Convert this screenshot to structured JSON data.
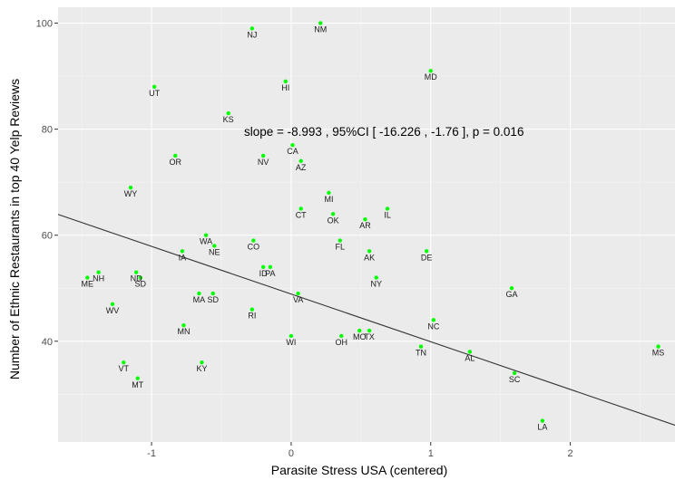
{
  "chart_data": {
    "type": "scatter",
    "xlabel": "Parasite Stress USA (centered)",
    "ylabel": "Number of Ethnic Restaurants in top 40 Yelp Reviews",
    "xlim": [
      -1.67,
      2.75
    ],
    "ylim": [
      21,
      103
    ],
    "x_ticks": [
      -1,
      0,
      1,
      2
    ],
    "y_ticks": [
      40,
      60,
      80,
      100
    ],
    "x_tick_labels": [
      "-1",
      "0",
      "1",
      "2"
    ],
    "y_tick_labels": [
      "40",
      "60",
      "80",
      "100"
    ],
    "grid": true,
    "background": "#ebebeb",
    "point_color": "#00ff00",
    "fit_line": {
      "intercept": 48.9,
      "slope": -8.993
    },
    "annotation": "slope =  -8.993 , 95%CI [ -16.226 , -1.76 ], p =  0.016",
    "points": [
      {
        "label": "NM",
        "x": 0.21,
        "y": 100
      },
      {
        "label": "NJ",
        "x": -0.28,
        "y": 99
      },
      {
        "label": "MD",
        "x": 1.0,
        "y": 91
      },
      {
        "label": "HI",
        "x": -0.04,
        "y": 89
      },
      {
        "label": "UT",
        "x": -0.98,
        "y": 88
      },
      {
        "label": "KS",
        "x": -0.45,
        "y": 83
      },
      {
        "label": "CA",
        "x": 0.01,
        "y": 77
      },
      {
        "label": "OR",
        "x": -0.83,
        "y": 75
      },
      {
        "label": "NV",
        "x": -0.2,
        "y": 75
      },
      {
        "label": "AZ",
        "x": 0.07,
        "y": 74
      },
      {
        "label": "WY",
        "x": -1.15,
        "y": 69
      },
      {
        "label": "MI",
        "x": 0.27,
        "y": 68
      },
      {
        "label": "CT",
        "x": 0.07,
        "y": 65
      },
      {
        "label": "IL",
        "x": 0.69,
        "y": 65
      },
      {
        "label": "OK",
        "x": 0.3,
        "y": 64
      },
      {
        "label": "AR",
        "x": 0.53,
        "y": 63
      },
      {
        "label": "WA",
        "x": -0.61,
        "y": 60
      },
      {
        "label": "CO",
        "x": -0.27,
        "y": 59
      },
      {
        "label": "FL",
        "x": 0.35,
        "y": 59
      },
      {
        "label": "NE",
        "x": -0.55,
        "y": 58
      },
      {
        "label": "IA",
        "x": -0.78,
        "y": 57
      },
      {
        "label": "AK",
        "x": 0.56,
        "y": 57
      },
      {
        "label": "DE",
        "x": 0.97,
        "y": 57
      },
      {
        "label": "ID",
        "x": -0.2,
        "y": 54
      },
      {
        "label": "PA",
        "x": -0.15,
        "y": 54
      },
      {
        "label": "NH",
        "x": -1.38,
        "y": 53
      },
      {
        "label": "ND",
        "x": -1.11,
        "y": 53
      },
      {
        "label": "SD",
        "x": -1.08,
        "y": 52
      },
      {
        "label": "ME",
        "x": -1.46,
        "y": 52
      },
      {
        "label": "NY",
        "x": 0.61,
        "y": 52
      },
      {
        "label": "GA",
        "x": 1.58,
        "y": 50
      },
      {
        "label": "MA",
        "x": -0.66,
        "y": 49
      },
      {
        "label": "SD",
        "x": -0.56,
        "y": 49
      },
      {
        "label": "VA",
        "x": 0.05,
        "y": 49
      },
      {
        "label": "WV",
        "x": -1.28,
        "y": 47
      },
      {
        "label": "RI",
        "x": -0.28,
        "y": 46
      },
      {
        "label": "NC",
        "x": 1.02,
        "y": 44
      },
      {
        "label": "MN",
        "x": -0.77,
        "y": 43
      },
      {
        "label": "MO",
        "x": 0.49,
        "y": 42
      },
      {
        "label": "TX",
        "x": 0.56,
        "y": 42
      },
      {
        "label": "OH",
        "x": 0.36,
        "y": 41
      },
      {
        "label": "WI",
        "x": 0.0,
        "y": 41
      },
      {
        "label": "MS",
        "x": 2.63,
        "y": 39
      },
      {
        "label": "TN",
        "x": 0.93,
        "y": 39
      },
      {
        "label": "AL",
        "x": 1.28,
        "y": 38
      },
      {
        "label": "VT",
        "x": -1.2,
        "y": 36
      },
      {
        "label": "KY",
        "x": -0.64,
        "y": 36
      },
      {
        "label": "SC",
        "x": 1.6,
        "y": 34
      },
      {
        "label": "MT",
        "x": -1.1,
        "y": 33
      },
      {
        "label": "LA",
        "x": 1.8,
        "y": 25
      }
    ]
  }
}
